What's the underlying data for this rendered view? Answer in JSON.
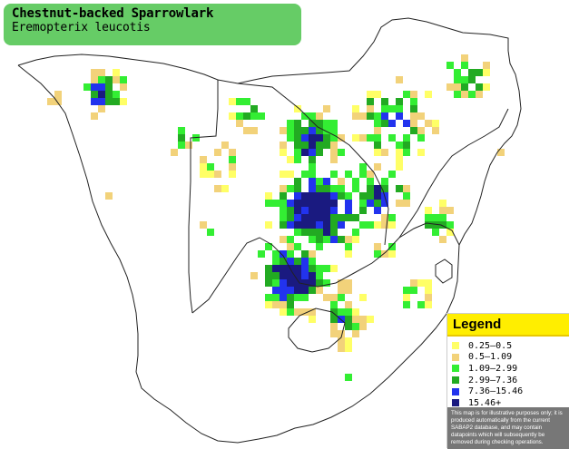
{
  "title": {
    "common_name": "Chestnut-backed Sparrowlark",
    "scientific_name": "Eremopterix leucotis"
  },
  "legend": {
    "heading": "Legend",
    "items": [
      {
        "label": "0.25–0.5",
        "color": "#ffff66"
      },
      {
        "label": "0.5–1.09",
        "color": "#f2d27a"
      },
      {
        "label": "1.09–2.99",
        "color": "#33ee33"
      },
      {
        "label": "2.99–7.36",
        "color": "#22aa22"
      },
      {
        "label": "7.36–15.46",
        "color": "#2233ee"
      },
      {
        "label": "15.46+",
        "color": "#1a1a80"
      }
    ],
    "note": "This map is for illustrative purposes only; it is produced automatically from the current SABAP2 database, and may contain datapoints which will subsequently be removed during checking operations."
  }
}
